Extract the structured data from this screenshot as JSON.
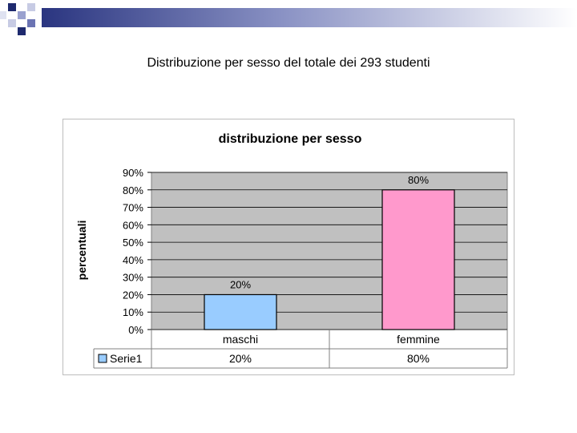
{
  "slide": {
    "title": "Distribuzione per sesso del totale dei 293 studenti"
  },
  "colors": {
    "deco_dark": "#1e2a6e",
    "deco_light": "#c7cbe4",
    "plot_bg": "#c0c0c0",
    "maschi": "#99ccff",
    "femmine": "#ff99cc"
  },
  "chart_data": {
    "type": "bar",
    "title": "distribuzione per sesso",
    "ylabel": "percentuali",
    "xlabel": "",
    "categories": [
      "maschi",
      "femmine"
    ],
    "series": [
      {
        "name": "Serie1",
        "values": [
          20,
          80
        ],
        "colors": [
          "#99ccff",
          "#ff99cc"
        ]
      }
    ],
    "data_labels": [
      "20%",
      "80%"
    ],
    "ylim": [
      0,
      90
    ],
    "yticks": [
      0,
      10,
      20,
      30,
      40,
      50,
      60,
      70,
      80,
      90
    ],
    "ytick_labels": [
      "0%",
      "10%",
      "20%",
      "30%",
      "40%",
      "50%",
      "60%",
      "70%",
      "80%",
      "90%"
    ],
    "grid": true,
    "data_table": {
      "legend_label": "Serie1",
      "values": [
        "20%",
        "80%"
      ]
    }
  }
}
